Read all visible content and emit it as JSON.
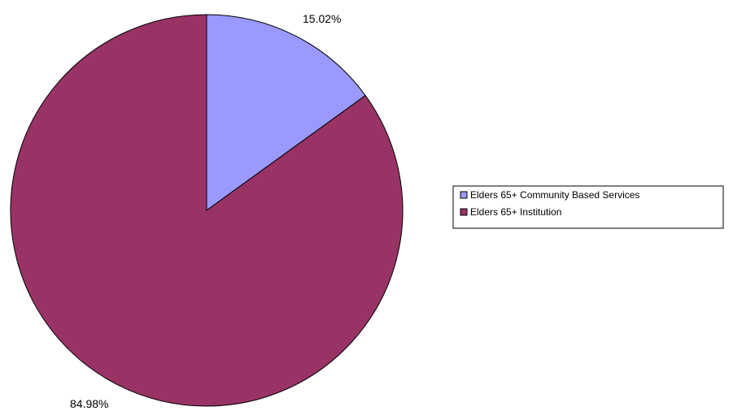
{
  "chart_data": {
    "type": "pie",
    "slices": [
      {
        "label": "Elders 65+ Community Based Services",
        "value": 15.02,
        "display": "15.02%",
        "color": "#9999ff"
      },
      {
        "label": "Elders 65+ Institution",
        "value": 84.98,
        "display": "84.98%",
        "color": "#993366"
      }
    ],
    "legend_position": "right",
    "start_angle": "12 o'clock",
    "direction": "clockwise"
  }
}
